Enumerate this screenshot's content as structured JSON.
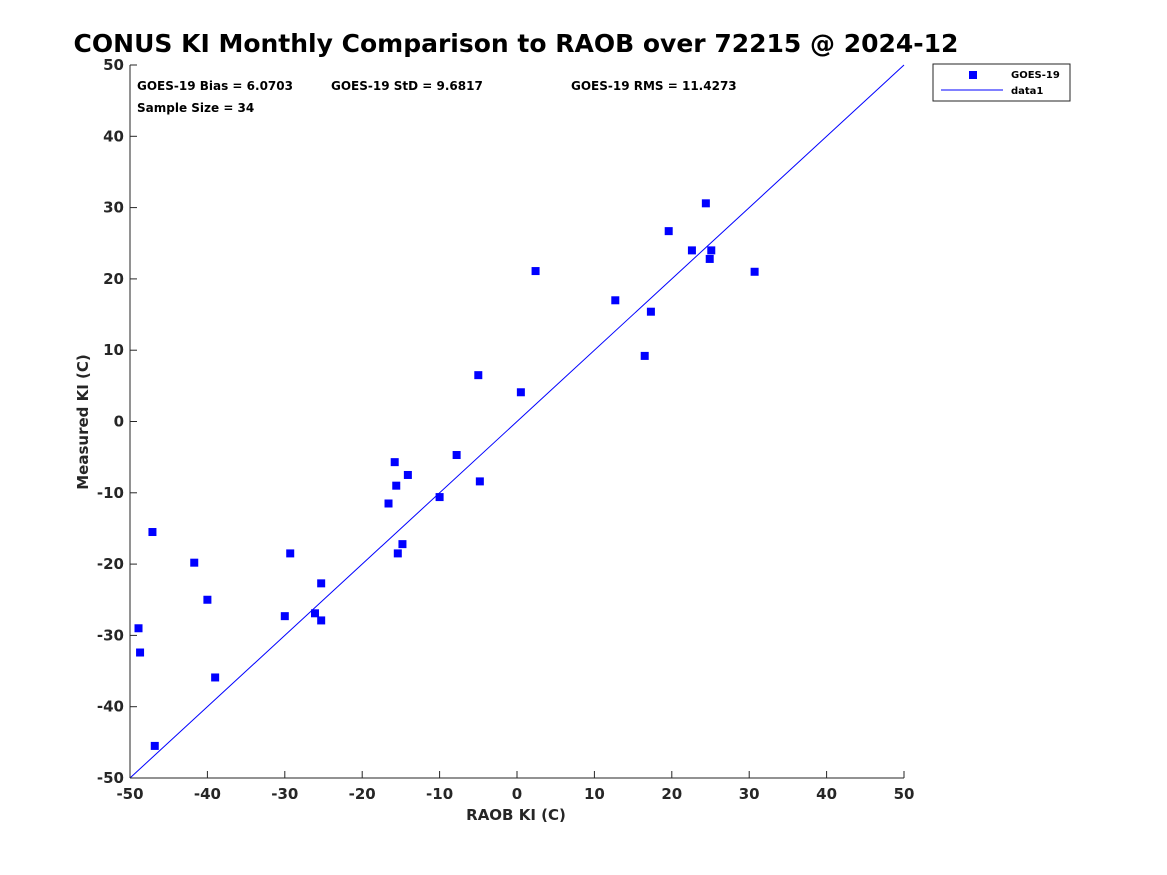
{
  "chart_data": {
    "type": "scatter",
    "title": "CONUS KI Monthly Comparison to RAOB over 72215 @ 2024-12",
    "xlabel": "RAOB KI (C)",
    "ylabel": "Measured KI (C)",
    "xlim": [
      -50,
      50
    ],
    "ylim": [
      -50,
      50
    ],
    "xticks": [
      -50,
      -40,
      -30,
      -20,
      -10,
      0,
      10,
      20,
      30,
      40,
      50
    ],
    "yticks": [
      -50,
      -40,
      -30,
      -20,
      -10,
      0,
      10,
      20,
      30,
      40,
      50
    ],
    "xtick_labels": [
      "-50",
      "-40",
      "-30",
      "-20",
      "-10",
      "0",
      "10",
      "20",
      "30",
      "40",
      "50"
    ],
    "ytick_labels": [
      "-50",
      "-40",
      "-30",
      "-20",
      "-10",
      "0",
      "10",
      "20",
      "30",
      "40",
      "50"
    ],
    "grid": false,
    "legend_position": "top-right",
    "stats": {
      "bias": "GOES-19 Bias = 6.0703",
      "std": "GOES-19 StD = 9.6817",
      "rms": "GOES-19 RMS = 11.4273",
      "sample_size": "Sample Size = 34"
    },
    "series": [
      {
        "name": "GOES-19",
        "kind": "scatter",
        "marker": "square",
        "color": "#0000ff",
        "points": [
          [
            -48.9,
            -29.0
          ],
          [
            -48.7,
            -32.4
          ],
          [
            -47.1,
            -15.5
          ],
          [
            -46.8,
            -45.5
          ],
          [
            -41.7,
            -19.8
          ],
          [
            -40.0,
            -25.0
          ],
          [
            -39.0,
            -35.9
          ],
          [
            -30.0,
            -27.3
          ],
          [
            -29.3,
            -18.5
          ],
          [
            -26.1,
            -26.9
          ],
          [
            -25.3,
            -22.7
          ],
          [
            -25.3,
            -27.9
          ],
          [
            -16.6,
            -11.5
          ],
          [
            -15.8,
            -5.7
          ],
          [
            -15.6,
            -9.0
          ],
          [
            -15.4,
            -18.5
          ],
          [
            -14.8,
            -17.2
          ],
          [
            -14.1,
            -7.5
          ],
          [
            -10.0,
            -10.6
          ],
          [
            -7.8,
            -4.7
          ],
          [
            -5.0,
            6.5
          ],
          [
            -4.8,
            -8.4
          ],
          [
            0.5,
            4.1
          ],
          [
            2.4,
            21.1
          ],
          [
            12.7,
            17.0
          ],
          [
            16.5,
            9.2
          ],
          [
            17.3,
            15.4
          ],
          [
            19.6,
            26.7
          ],
          [
            22.6,
            24.0
          ],
          [
            24.4,
            30.6
          ],
          [
            24.9,
            22.8
          ],
          [
            25.1,
            24.0
          ],
          [
            30.7,
            21.0
          ]
        ]
      },
      {
        "name": "data1",
        "kind": "line",
        "color": "#0000ff",
        "x": [
          -50,
          50
        ],
        "y": [
          -50,
          50
        ]
      }
    ]
  }
}
